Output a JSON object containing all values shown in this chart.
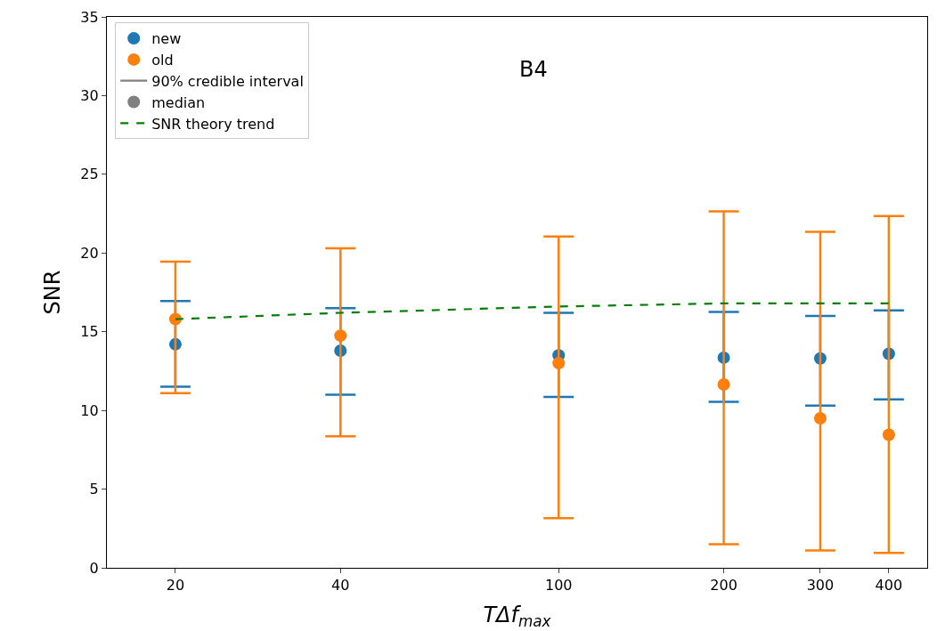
{
  "chart_data": {
    "type": "scatter",
    "title": "B4",
    "xlabel": "TΔf$_{max}$",
    "ylabel": "SNR",
    "x": [
      20,
      40,
      100,
      200,
      300,
      400
    ],
    "log": "x",
    "xlim": [
      15,
      470
    ],
    "xticks": [
      20,
      40,
      100,
      200,
      300,
      400
    ],
    "ylim": [
      0,
      35
    ],
    "yticks": [
      0,
      5,
      10,
      15,
      20,
      25,
      30,
      35
    ],
    "legend": "top left",
    "marker": "circle",
    "series": [
      {
        "name": "new",
        "color": "#1f77b4",
        "values": [
          14.2,
          13.8,
          13.5,
          13.35,
          13.3,
          13.6
        ],
        "errors": [
          [
            11.5,
            16.95
          ],
          [
            11.0,
            16.5
          ],
          [
            10.85,
            16.2
          ],
          [
            10.55,
            16.25
          ],
          [
            10.3,
            16.0
          ],
          [
            10.7,
            16.35
          ]
        ]
      },
      {
        "name": "old",
        "color": "#ff7f0e",
        "values": [
          15.8,
          14.75,
          13.0,
          11.65,
          9.5,
          8.45
        ],
        "errors": [
          [
            11.1,
            19.45
          ],
          [
            8.35,
            20.3
          ],
          [
            3.15,
            21.05
          ],
          [
            1.5,
            22.65
          ],
          [
            1.1,
            21.35
          ],
          [
            0.95,
            22.35
          ]
        ]
      },
      {
        "name": "90% credible interval",
        "type": "line",
        "marker": "none",
        "color": "#808080",
        "values": [
          null,
          null,
          null,
          null,
          null,
          null
        ]
      },
      {
        "name": "median",
        "type": "scatter",
        "color": "#808080",
        "values": [
          null,
          null,
          null,
          null,
          null,
          null
        ]
      },
      {
        "name": "SNR theory trend",
        "type": "line",
        "marker": "none",
        "line_style": "dashed",
        "color": "#008000",
        "values": [
          15.8,
          16.2,
          16.6,
          16.8,
          16.8,
          16.8
        ]
      }
    ]
  }
}
